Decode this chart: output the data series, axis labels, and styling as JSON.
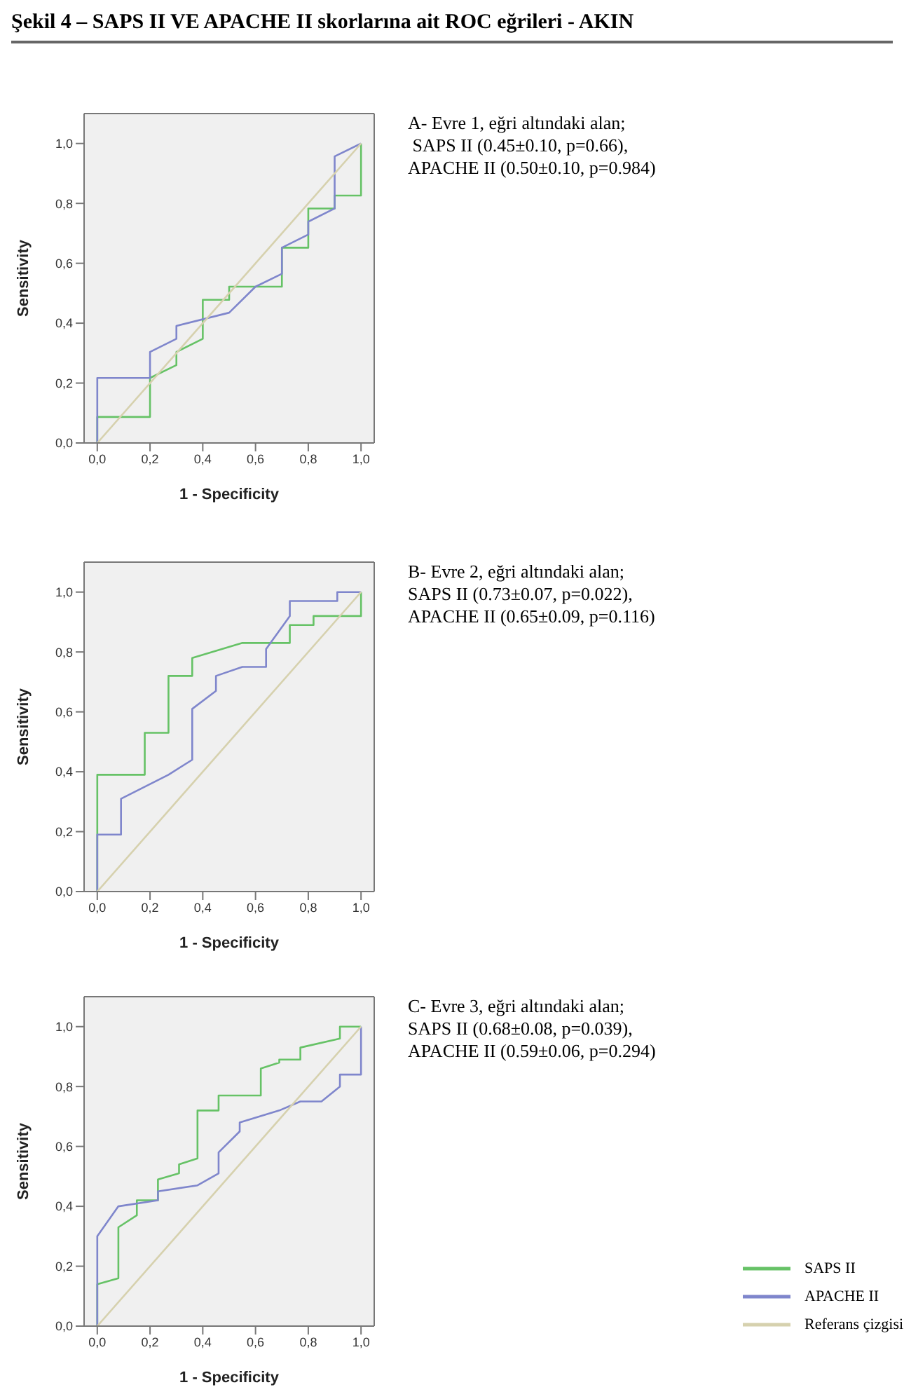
{
  "chart_data": [
    {
      "type": "line",
      "title": "Şekil 4 – SAPS II VE APACHE II skorlarına ait ROC eğrileri - AKIN",
      "xlabel": "1 - Specificity",
      "ylabel": "Sensitivity",
      "annotations": [
        "A- Evre 1, eğri altındaki alan;",
        " SAPS II (0.45±0.10, p=0.66),",
        "APACHE II (0.50±0.10, p=0.984)"
      ],
      "xlim": [
        -0.05,
        1.05
      ],
      "ylim": [
        0,
        1.1
      ],
      "xticks": [
        {
          "value": 0,
          "label": "0,0"
        },
        {
          "value": 0.2,
          "label": "0,2"
        },
        {
          "value": 0.4,
          "label": "0,4"
        },
        {
          "value": 0.6,
          "label": "0,6"
        },
        {
          "value": 0.8,
          "label": "0,8"
        },
        {
          "value": 1,
          "label": "1,0"
        }
      ],
      "yticks": [
        {
          "value": 0,
          "label": "0,0"
        },
        {
          "value": 0.2,
          "label": "0,2"
        },
        {
          "value": 0.4,
          "label": "0,4"
        },
        {
          "value": 0.6,
          "label": "0,6"
        },
        {
          "value": 0.8,
          "label": "0,8"
        },
        {
          "value": 1,
          "label": "1,0"
        }
      ],
      "grid": false,
      "legend": false,
      "marker": "none",
      "line_style": "solid",
      "series": [
        {
          "color": "#66c266",
          "x": [
            0,
            0,
            0.2,
            0.2,
            0.3,
            0.3,
            0.4,
            0.4,
            0.5,
            0.5,
            0.7,
            0.7,
            0.8,
            0.8,
            0.9,
            0.9,
            1,
            1
          ],
          "values": [
            0,
            0.087,
            0.087,
            0.217,
            0.26,
            0.304,
            0.348,
            0.478,
            0.478,
            0.522,
            0.522,
            0.652,
            0.652,
            0.783,
            0.783,
            0.826,
            0.826,
            1
          ]
        },
        {
          "color": "#7f86cc",
          "x": [
            0,
            0,
            0.2,
            0.2,
            0.3,
            0.3,
            0.5,
            0.6,
            0.7,
            0.7,
            0.8,
            0.8,
            0.9,
            0.9,
            1
          ],
          "values": [
            0,
            0.217,
            0.217,
            0.304,
            0.348,
            0.391,
            0.435,
            0.522,
            0.565,
            0.652,
            0.696,
            0.739,
            0.783,
            0.957,
            1
          ]
        },
        {
          "color": "#d6d1ae",
          "x": [
            0,
            1
          ],
          "values": [
            0,
            1
          ]
        }
      ]
    },
    {
      "type": "line",
      "xlabel": "1 - Specificity",
      "ylabel": "Sensitivity",
      "annotations": [
        "B- Evre 2, eğri altındaki alan;",
        "SAPS II (0.73±0.07, p=0.022),",
        "APACHE II (0.65±0.09, p=0.116)"
      ],
      "xlim": [
        -0.05,
        1.05
      ],
      "ylim": [
        0,
        1.1
      ],
      "xticks": [
        {
          "value": 0,
          "label": "0,0"
        },
        {
          "value": 0.2,
          "label": "0,2"
        },
        {
          "value": 0.4,
          "label": "0,4"
        },
        {
          "value": 0.6,
          "label": "0,6"
        },
        {
          "value": 0.8,
          "label": "0,8"
        },
        {
          "value": 1,
          "label": "1,0"
        }
      ],
      "yticks": [
        {
          "value": 0,
          "label": "0,0"
        },
        {
          "value": 0.2,
          "label": "0,2"
        },
        {
          "value": 0.4,
          "label": "0,4"
        },
        {
          "value": 0.6,
          "label": "0,6"
        },
        {
          "value": 0.8,
          "label": "0,8"
        },
        {
          "value": 1,
          "label": "1,0"
        }
      ],
      "grid": false,
      "legend": false,
      "marker": "none",
      "line_style": "solid",
      "series": [
        {
          "color": "#66c266",
          "x": [
            0,
            0,
            0.18,
            0.18,
            0.27,
            0.27,
            0.36,
            0.36,
            0.55,
            0.73,
            0.73,
            0.82,
            0.82,
            1,
            1
          ],
          "values": [
            0,
            0.39,
            0.39,
            0.53,
            0.53,
            0.72,
            0.72,
            0.78,
            0.83,
            0.83,
            0.89,
            0.89,
            0.92,
            0.92,
            1
          ]
        },
        {
          "color": "#7f86cc",
          "x": [
            0,
            0,
            0.09,
            0.09,
            0.27,
            0.36,
            0.36,
            0.45,
            0.45,
            0.55,
            0.64,
            0.64,
            0.73,
            0.73,
            0.91,
            0.91,
            1
          ],
          "values": [
            0,
            0.19,
            0.19,
            0.31,
            0.39,
            0.44,
            0.61,
            0.67,
            0.72,
            0.75,
            0.75,
            0.81,
            0.92,
            0.97,
            0.97,
            1,
            1
          ]
        },
        {
          "color": "#d6d1ae",
          "x": [
            0,
            1
          ],
          "values": [
            0,
            1
          ]
        }
      ]
    },
    {
      "type": "line",
      "xlabel": "1 - Specificity",
      "ylabel": "Sensitivity",
      "annotations": [
        "C- Evre 3, eğri altındaki alan;",
        "SAPS II (0.68±0.08, p=0.039),",
        "APACHE II (0.59±0.06, p=0.294)"
      ],
      "xlim": [
        -0.05,
        1.05
      ],
      "ylim": [
        0,
        1.1
      ],
      "xticks": [
        {
          "value": 0,
          "label": "0,0"
        },
        {
          "value": 0.2,
          "label": "0,2"
        },
        {
          "value": 0.4,
          "label": "0,4"
        },
        {
          "value": 0.6,
          "label": "0,6"
        },
        {
          "value": 0.8,
          "label": "0,8"
        },
        {
          "value": 1,
          "label": "1,0"
        }
      ],
      "yticks": [
        {
          "value": 0,
          "label": "0,0"
        },
        {
          "value": 0.2,
          "label": "0,2"
        },
        {
          "value": 0.4,
          "label": "0,4"
        },
        {
          "value": 0.6,
          "label": "0,6"
        },
        {
          "value": 0.8,
          "label": "0,8"
        },
        {
          "value": 1,
          "label": "1,0"
        }
      ],
      "grid": false,
      "legend": "bottom right",
      "marker": "none",
      "line_style": "solid",
      "series": [
        {
          "name": "SAPS II",
          "color": "#66c266",
          "x": [
            0,
            0,
            0.08,
            0.08,
            0.15,
            0.15,
            0.23,
            0.23,
            0.31,
            0.31,
            0.38,
            0.38,
            0.46,
            0.46,
            0.62,
            0.62,
            0.69,
            0.69,
            0.77,
            0.77,
            0.92,
            0.92,
            1
          ],
          "values": [
            0,
            0.14,
            0.16,
            0.33,
            0.37,
            0.42,
            0.42,
            0.49,
            0.51,
            0.54,
            0.56,
            0.72,
            0.72,
            0.77,
            0.77,
            0.86,
            0.88,
            0.89,
            0.89,
            0.93,
            0.96,
            1,
            1
          ]
        },
        {
          "name": "APACHE II",
          "color": "#7f86cc",
          "x": [
            0,
            0,
            0.08,
            0.23,
            0.23,
            0.38,
            0.46,
            0.46,
            0.54,
            0.54,
            0.69,
            0.77,
            0.85,
            0.92,
            0.92,
            1,
            1
          ],
          "values": [
            0,
            0.3,
            0.4,
            0.42,
            0.45,
            0.47,
            0.51,
            0.58,
            0.65,
            0.68,
            0.72,
            0.75,
            0.75,
            0.8,
            0.84,
            0.84,
            1
          ]
        },
        {
          "name": "Referans çizgisi",
          "color": "#d6d1ae",
          "x": [
            0,
            1
          ],
          "values": [
            0,
            1
          ]
        }
      ]
    }
  ]
}
